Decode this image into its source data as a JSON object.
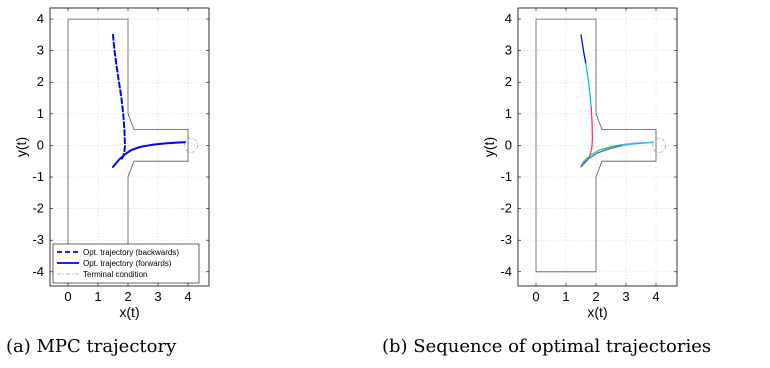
{
  "captions": {
    "a": "(a) MPC trajectory",
    "b": "(b) Sequence of optimal trajectories"
  },
  "chart_data": [
    {
      "type": "line",
      "title": "",
      "xlabel": "x(t)",
      "ylabel": "y(t)",
      "xlim": [
        -0.6,
        4.7
      ],
      "ylim": [
        -4.45,
        4.35
      ],
      "xticks": [
        0,
        1,
        2,
        3,
        4
      ],
      "yticks": [
        -4,
        -3,
        -2,
        -1,
        0,
        1,
        2,
        3,
        4
      ],
      "grid": true,
      "boundary": {
        "x": [
          0,
          2,
          2,
          2.2,
          4,
          4,
          2.2,
          2,
          2,
          0,
          0
        ],
        "y": [
          4,
          4,
          1.0,
          0.5,
          0.5,
          -0.5,
          -0.5,
          -1.0,
          -4,
          -4,
          4
        ]
      },
      "terminal_circle": {
        "cx": 4.1,
        "cy": 0.0,
        "r": 0.22
      },
      "series": [
        {
          "name": "Opt. trajectory (backwards)",
          "color": "#0000ff",
          "style": "dashed",
          "x": [
            1.5,
            1.55,
            1.62,
            1.7,
            1.78,
            1.84,
            1.88,
            1.9,
            1.88,
            1.84,
            1.78
          ],
          "y": [
            3.5,
            3.0,
            2.5,
            2.0,
            1.5,
            1.0,
            0.5,
            0.0,
            -0.2,
            -0.35,
            -0.45
          ]
        },
        {
          "name": "Opt. trajectory (forwards)",
          "color": "#0000ff",
          "style": "solid",
          "x": [
            1.5,
            1.7,
            1.9,
            2.1,
            2.4,
            2.8,
            3.2,
            3.6,
            3.9
          ],
          "y": [
            -0.68,
            -0.45,
            -0.28,
            -0.15,
            -0.05,
            0.02,
            0.06,
            0.09,
            0.1
          ]
        },
        {
          "name": "Terminal condition",
          "color": "#999999",
          "style": "dashdot",
          "x": [],
          "y": []
        }
      ],
      "legend_position": "bottom"
    },
    {
      "type": "line",
      "title": "",
      "xlabel": "x(t)",
      "ylabel": "y(t)",
      "xlim": [
        -0.6,
        4.7
      ],
      "ylim": [
        -4.45,
        4.35
      ],
      "xticks": [
        0,
        1,
        2,
        3,
        4
      ],
      "yticks": [
        -4,
        -3,
        -2,
        -1,
        0,
        1,
        2,
        3,
        4
      ],
      "grid": true,
      "boundary": {
        "x": [
          0,
          2,
          2,
          2.2,
          4,
          4,
          2.2,
          2,
          2,
          0,
          0
        ],
        "y": [
          4,
          4,
          1.0,
          0.5,
          0.5,
          -0.5,
          -0.5,
          -1.0,
          -4,
          -4,
          4
        ]
      },
      "terminal_circle": {
        "cx": 4.1,
        "cy": 0.0,
        "r": 0.22
      },
      "series": [
        {
          "color": "#0000ff",
          "style": "solid",
          "x": [
            1.5,
            1.55,
            1.6,
            1.66
          ],
          "y": [
            3.5,
            3.2,
            2.9,
            2.6
          ]
        },
        {
          "color": "#00c8c8",
          "style": "solid",
          "x": [
            1.66,
            1.74,
            1.8,
            1.84
          ],
          "y": [
            2.6,
            2.1,
            1.6,
            1.2
          ]
        },
        {
          "color": "#ff3366",
          "style": "solid",
          "x": [
            1.84,
            1.87,
            1.88,
            1.86,
            1.8,
            1.72,
            1.62,
            1.52
          ],
          "y": [
            1.2,
            0.7,
            0.2,
            -0.1,
            -0.3,
            -0.45,
            -0.55,
            -0.62
          ]
        },
        {
          "color": "#33cc33",
          "style": "solid",
          "x": [
            1.55,
            1.8,
            2.1,
            2.5,
            2.9
          ],
          "y": [
            -0.55,
            -0.32,
            -0.15,
            -0.04,
            0.03
          ]
        },
        {
          "color": "#3366ff",
          "style": "solid",
          "x": [
            1.5,
            1.75,
            2.05,
            2.45,
            2.9
          ],
          "y": [
            -0.68,
            -0.42,
            -0.24,
            -0.1,
            0.0
          ]
        },
        {
          "color": "#ff66cc",
          "style": "solid",
          "x": [
            2.9,
            3.3,
            3.7,
            3.9
          ],
          "y": [
            0.03,
            0.07,
            0.09,
            0.1
          ]
        },
        {
          "color": "#00ccff",
          "style": "solid",
          "x": [
            2.9,
            3.3,
            3.7,
            3.9
          ],
          "y": [
            0.0,
            0.05,
            0.08,
            0.1
          ]
        }
      ]
    }
  ]
}
